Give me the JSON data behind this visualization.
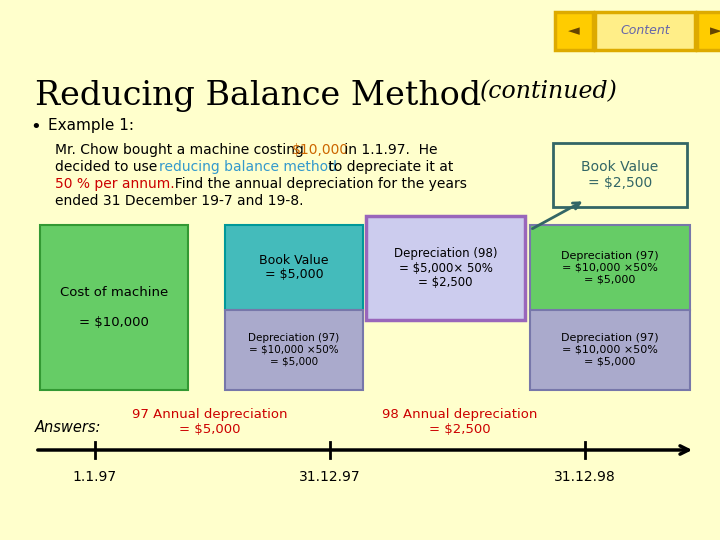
{
  "bg_color": "#ffffcc",
  "title_main": "Reducing Balance Method",
  "title_italic": "(continued)",
  "bullet_text": "Example 1:",
  "orange_color": "#cc6600",
  "blue_color": "#3399cc",
  "red_color": "#cc0000",
  "black": "#000000",
  "book_value_color": "#336666",
  "green_box_color": "#66cc66",
  "teal_box_color": "#44bbbb",
  "purple_box_color": "#9966bb",
  "light_purple_color": "#aaaacc",
  "nav_gold": "#ddaa00",
  "nav_bg": "#ffee88",
  "nav_arrow_bg": "#ffcc00",
  "content_text_color": "#6666aa",
  "timeline_dates": [
    "1.1.97",
    "31.12.97",
    "31.12.98"
  ]
}
